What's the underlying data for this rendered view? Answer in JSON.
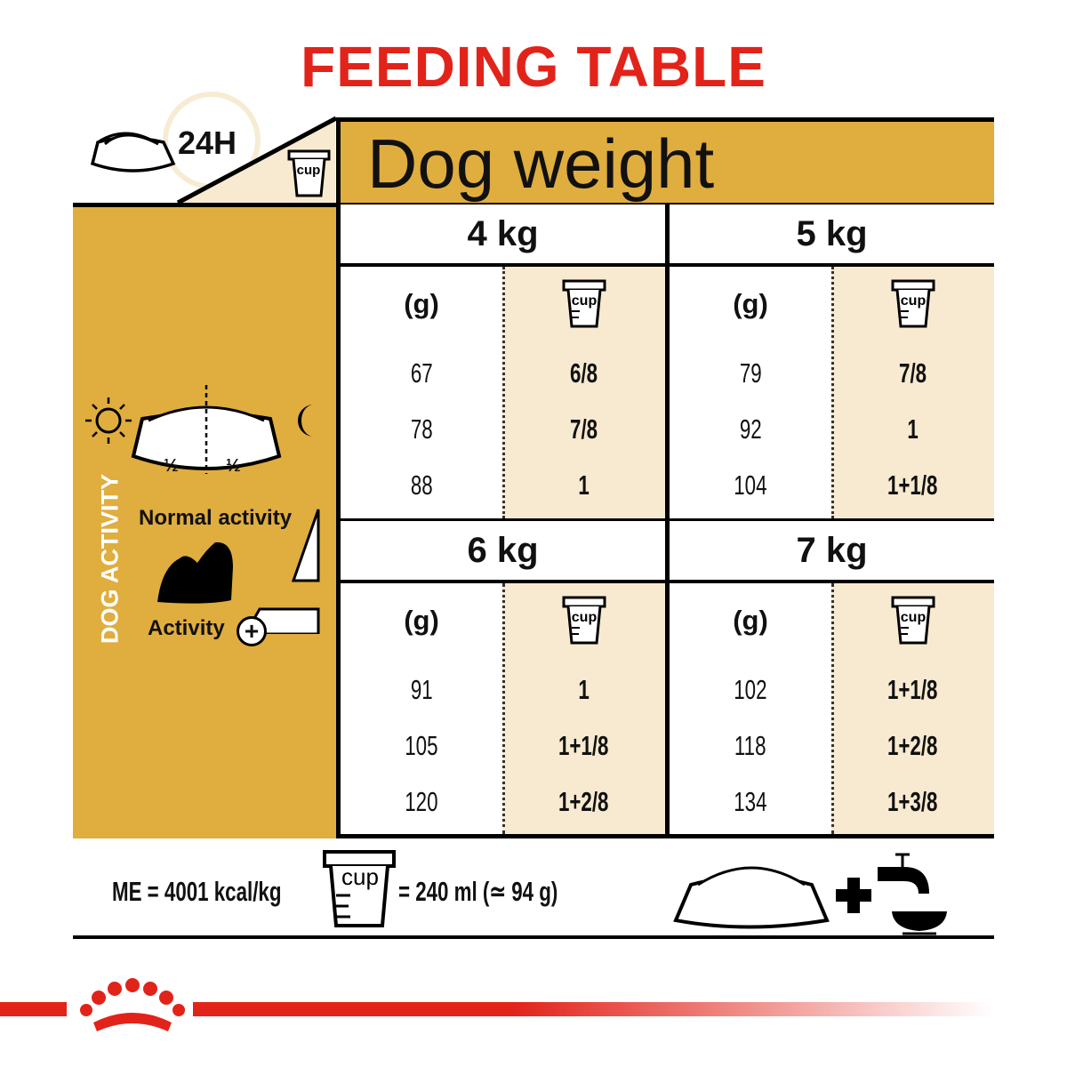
{
  "title": "FEEDING TABLE",
  "corner": {
    "period_label": "24H",
    "cup_label": "cup"
  },
  "header": {
    "title": "Dog weight"
  },
  "activity_panel": {
    "vertical_label": "DOG ACTIVITY",
    "half_left": "½",
    "half_right": "½",
    "normal_label": "Normal activity",
    "high_label": "Activity"
  },
  "columns": {
    "grams_label": "(g)",
    "cup_label": "cup"
  },
  "weights": [
    {
      "label": "4 kg",
      "rows": [
        {
          "g": "67",
          "cup": "6/8"
        },
        {
          "g": "78",
          "cup": "7/8"
        },
        {
          "g": "88",
          "cup": "1"
        }
      ]
    },
    {
      "label": "5 kg",
      "rows": [
        {
          "g": "79",
          "cup": "7/8"
        },
        {
          "g": "92",
          "cup": "1"
        },
        {
          "g": "104",
          "cup": "1+1/8"
        }
      ]
    },
    {
      "label": "6 kg",
      "rows": [
        {
          "g": "91",
          "cup": "1"
        },
        {
          "g": "105",
          "cup": "1+1/8"
        },
        {
          "g": "120",
          "cup": "1+2/8"
        }
      ]
    },
    {
      "label": "7 kg",
      "rows": [
        {
          "g": "102",
          "cup": "1+1/8"
        },
        {
          "g": "118",
          "cup": "1+2/8"
        },
        {
          "g": "134",
          "cup": "1+3/8"
        }
      ]
    }
  ],
  "footer": {
    "energy": "ME = 4001 kcal/kg",
    "cup_label": "cup",
    "cup_equiv": "= 240 ml (≃ 94 g)",
    "plus": "+"
  },
  "colors": {
    "accent_red": "#E2231A",
    "gold": "#E0AD3F",
    "cream": "#F8EAD0"
  }
}
